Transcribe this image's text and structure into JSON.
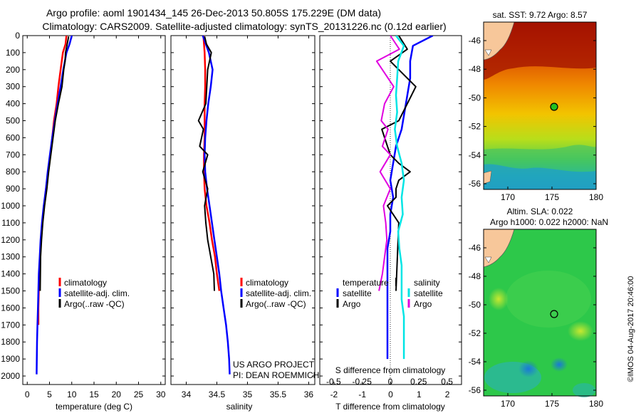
{
  "header": {
    "title_line1": "Argo profile: aoml 1901434_145 26-Dec-2013 50.805S 175.229E (DM data)",
    "title_line2": "Climatology: CARS2009. Satellite-adjusted climatology: synTS_20131226.nc (0.12d earlier)"
  },
  "colors": {
    "climatology": "#ff0000",
    "satellite": "#0000ff",
    "argo": "#000000",
    "s_satellite": "#00e5e5",
    "s_argo": "#e000e0"
  },
  "panels": {
    "temperature": {
      "xlabel": "temperature (deg C)",
      "xticks": [
        "0",
        "5",
        "10",
        "15",
        "20",
        "25",
        "30"
      ],
      "legend": [
        "climatology",
        "satellite-adj. clim.",
        "Argo(..raw -QC)"
      ]
    },
    "salinity": {
      "xlabel": "salinity",
      "xticks": [
        "34",
        "34.5",
        "35",
        "35.5",
        "36"
      ],
      "legend": [
        "climatology",
        "satellite-adj. clim.",
        "Argo(..raw -QC)"
      ],
      "project_line1": "US ARGO PROJECT",
      "project_line2": "PI: DEAN ROEMMICH"
    },
    "difference": {
      "top_label": "S difference from climatology",
      "s_ticks": [
        "-0.5",
        "-0.25",
        "0",
        "0.25",
        "0.5"
      ],
      "t_ticks": [
        "-2",
        "-1",
        "0",
        "1",
        "2"
      ],
      "xlabel": "T difference from climatology",
      "legend_temp_title": "temperature",
      "legend_sal_title": "salinity",
      "legend_satellite": "satellite",
      "legend_argo": "Argo"
    },
    "depth_ticks": [
      "0",
      "100",
      "200",
      "300",
      "400",
      "500",
      "600",
      "700",
      "800",
      "900",
      "1000",
      "1100",
      "1200",
      "1300",
      "1400",
      "1500",
      "1600",
      "1700",
      "1800",
      "1900",
      "2000"
    ]
  },
  "maps": {
    "sst": {
      "title": "sat. SST: 9.72 Argo: 8.57",
      "yticks": [
        "-46",
        "-48",
        "-50",
        "-52",
        "-54",
        "-56"
      ],
      "xticks": [
        "170",
        "175",
        "180"
      ]
    },
    "sla": {
      "title_line1": "Altim. SLA: 0.022",
      "title_line2": "Argo h1000: 0.022 h2000: NaN",
      "yticks": [
        "-46",
        "-48",
        "-50",
        "-52",
        "-54",
        "-56"
      ],
      "xticks": [
        "170",
        "175",
        "180"
      ]
    },
    "credit": "©IMOS 04-Aug-2017 20:46:00"
  },
  "chart_data": [
    {
      "type": "line",
      "panel": "temperature",
      "xlabel": "temperature (deg C)",
      "ylabel": "",
      "xlim": [
        -1,
        31
      ],
      "ylim": [
        2050,
        0
      ],
      "series": [
        {
          "name": "climatology",
          "x": [
            8.8,
            8.6,
            8.0,
            7.5,
            7.0,
            6.6,
            6.0,
            5.6,
            5.2,
            4.7,
            4.2,
            3.8,
            3.4,
            3.1,
            2.9,
            2.7,
            2.6,
            2.5,
            2.5
          ],
          "y": [
            0,
            50,
            100,
            200,
            300,
            400,
            500,
            600,
            700,
            800,
            900,
            1000,
            1100,
            1200,
            1300,
            1400,
            1500,
            1600,
            1700
          ]
        },
        {
          "name": "satellite-adj. clim.",
          "x": [
            10.0,
            9.5,
            8.8,
            8.1,
            7.5,
            6.8,
            6.2,
            5.6,
            5.1,
            4.6,
            4.2,
            3.7,
            3.3,
            3.0,
            2.8,
            2.6,
            2.5,
            2.4,
            2.3,
            2.2,
            2.1
          ],
          "y": [
            0,
            50,
            100,
            200,
            300,
            400,
            500,
            600,
            700,
            800,
            900,
            1000,
            1100,
            1200,
            1300,
            1400,
            1500,
            1600,
            1700,
            1800,
            1990
          ]
        },
        {
          "name": "Argo(..raw -QC)",
          "x": [
            9.3,
            8.9,
            8.6,
            8.5,
            8.2,
            7.8,
            7.0,
            6.3,
            5.8,
            5.3,
            4.8,
            4.4,
            3.9,
            3.5,
            3.2,
            3.0,
            2.9
          ],
          "y": [
            5,
            60,
            100,
            150,
            200,
            300,
            400,
            500,
            600,
            700,
            800,
            900,
            1000,
            1100,
            1200,
            1300,
            1500
          ]
        }
      ]
    },
    {
      "type": "line",
      "panel": "salinity",
      "xlabel": "salinity",
      "ylabel": "",
      "xlim": [
        33.75,
        36.1
      ],
      "ylim": [
        2050,
        0
      ],
      "series": [
        {
          "name": "climatology",
          "x": [
            34.28,
            34.3,
            34.31,
            34.31,
            34.3,
            34.3,
            34.3,
            34.29,
            34.29,
            34.3,
            34.33,
            34.38,
            34.42,
            34.47,
            34.5,
            34.54
          ],
          "y": [
            0,
            100,
            200,
            300,
            400,
            500,
            600,
            700,
            800,
            900,
            1000,
            1100,
            1200,
            1300,
            1400,
            1500
          ]
        },
        {
          "name": "satellite-adj. clim.",
          "x": [
            34.27,
            34.37,
            34.43,
            34.4,
            34.36,
            34.33,
            34.31,
            34.3,
            34.31,
            34.34,
            34.38,
            34.42,
            34.46,
            34.5,
            34.54,
            34.57,
            34.61,
            34.65,
            34.68,
            34.7,
            34.71
          ],
          "y": [
            0,
            100,
            200,
            300,
            400,
            500,
            600,
            700,
            800,
            900,
            1000,
            1100,
            1200,
            1300,
            1400,
            1500,
            1600,
            1700,
            1800,
            1900,
            1990
          ]
        },
        {
          "name": "Argo(..raw -QC)",
          "x": [
            34.3,
            34.33,
            34.41,
            34.35,
            34.32,
            34.2,
            34.28,
            34.22,
            34.35,
            34.27,
            34.35,
            34.3,
            34.32,
            34.35,
            34.4,
            34.45,
            34.46
          ],
          "y": [
            5,
            50,
            100,
            200,
            400,
            500,
            550,
            650,
            700,
            800,
            900,
            1000,
            1100,
            1200,
            1300,
            1400,
            1500
          ]
        }
      ]
    },
    {
      "type": "line",
      "panel": "difference",
      "xlabel": "T difference from climatology",
      "ylabel": "",
      "xlim": [
        -2.5,
        2.5
      ],
      "ylim": [
        2050,
        0
      ],
      "series": [
        {
          "name": "satellite",
          "x": [
            1.5,
            0.8,
            0.7,
            0.7,
            0.6,
            0.5,
            0.4,
            0.2,
            0.1,
            0.0,
            0.1,
            0.0,
            0.0,
            -0.1,
            -0.1,
            -0.1,
            -0.1,
            -0.1,
            -0.1,
            -0.1,
            -0.1
          ],
          "y": [
            0,
            60,
            150,
            250,
            350,
            450,
            550,
            650,
            750,
            850,
            950,
            1050,
            1150,
            1250,
            1350,
            1450,
            1550,
            1650,
            1750,
            1850,
            1900
          ]
        },
        {
          "name": "Argo",
          "x": [
            0.3,
            0.6,
            0.0,
            0.9,
            0.6,
            0.3,
            -0.3,
            -0.1,
            0.0,
            0.3,
            0.7,
            0.3,
            0.2,
            0.2,
            -0.1,
            0.3,
            0.2
          ],
          "y": [
            0,
            80,
            150,
            300,
            400,
            500,
            550,
            650,
            700,
            750,
            800,
            850,
            900,
            950,
            1000,
            1100,
            1500
          ]
        },
        {
          "name": "salinity satellite",
          "x": [
            0.05,
            0.12,
            0.07,
            0.06,
            0.05,
            0.06,
            0.04,
            0.06,
            0.1,
            0.12,
            0.1,
            0.11,
            0.07,
            0.08,
            0.1,
            0.1,
            0.1,
            0.12,
            0.12,
            0.12,
            0.12
          ],
          "y": [
            0,
            60,
            150,
            250,
            350,
            450,
            550,
            650,
            750,
            850,
            950,
            1050,
            1150,
            1250,
            1350,
            1450,
            1550,
            1650,
            1750,
            1850,
            1900
          ]
        },
        {
          "name": "salinity Argo",
          "x": [
            0.0,
            0.08,
            -0.12,
            0.03,
            -0.05,
            -0.08,
            -0.02,
            -0.07,
            0.0,
            -0.09,
            0.0,
            -0.06,
            -0.04,
            -0.03,
            -0.05,
            -0.07,
            -0.1
          ],
          "y": [
            0,
            80,
            150,
            300,
            400,
            500,
            550,
            650,
            700,
            800,
            900,
            1000,
            1100,
            1200,
            1300,
            1400,
            1500
          ]
        }
      ]
    }
  ]
}
